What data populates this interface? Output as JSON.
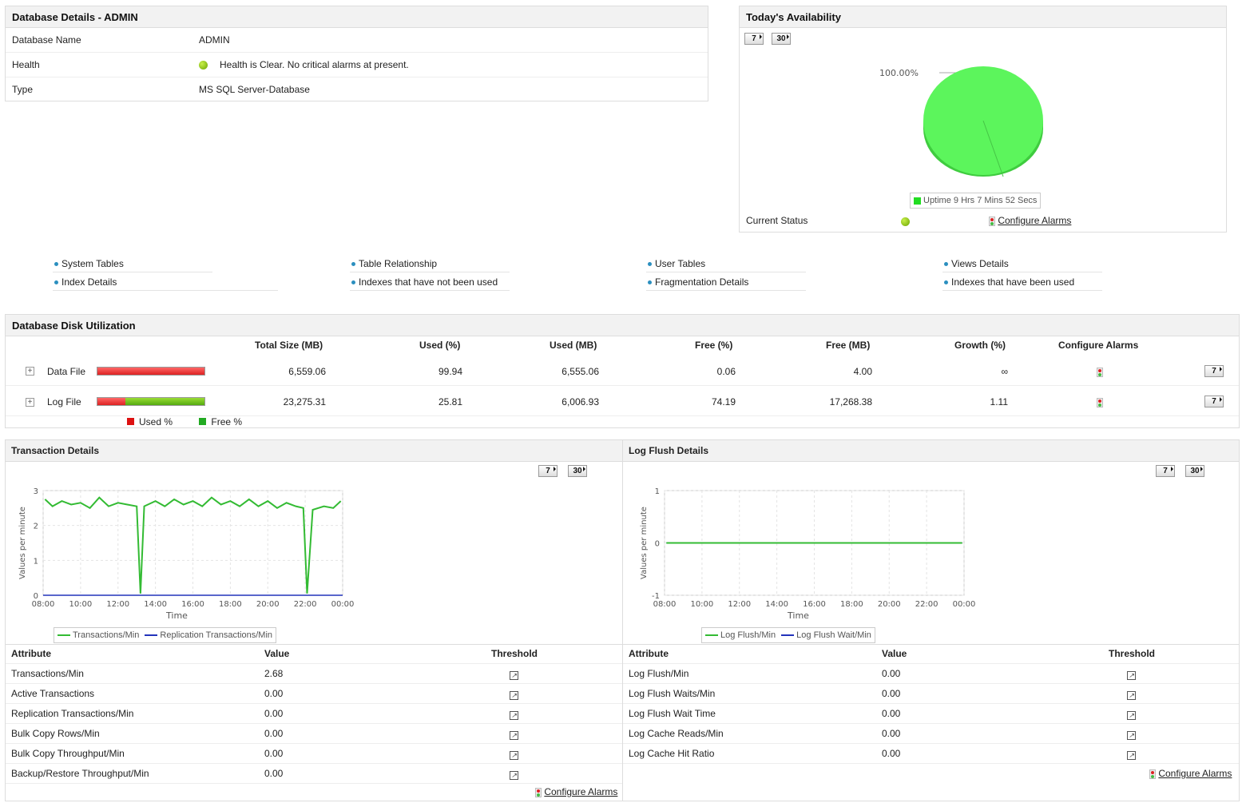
{
  "db_details": {
    "title": "Database Details  - ADMIN",
    "rows": [
      {
        "label": "Database Name",
        "value": "ADMIN"
      },
      {
        "label": "Health",
        "value": "Health is Clear. No critical alarms at present."
      },
      {
        "label": "Type",
        "value": "MS SQL Server-Database"
      }
    ]
  },
  "availability": {
    "title": "Today's Availability",
    "period_buttons": [
      "7",
      "30"
    ],
    "pie_label": "100.00%",
    "legend": "Uptime 9 Hrs 7 Mins 52 Secs",
    "current_status_label": "Current Status",
    "configure_alarms": "Configure Alarms",
    "colors": {
      "uptime": "#55ee55"
    }
  },
  "quick_links": [
    [
      "System Tables",
      "Index Details"
    ],
    [
      "Table Relationship",
      "Indexes that have not been used"
    ],
    [
      "User Tables",
      "Fragmentation Details"
    ],
    [
      "Views Details",
      "Indexes that have been used"
    ]
  ],
  "disk": {
    "title": "Database Disk Utilization",
    "headers": [
      "Total Size (MB)",
      "Used (%)",
      "Used (MB)",
      "Free (%)",
      "Free (MB)",
      "Growth (%)",
      "Configure Alarms"
    ],
    "rows": [
      {
        "name": "Data File",
        "total": "6,559.06",
        "used_pct": "99.94",
        "used_mb": "6,555.06",
        "free_pct": "0.06",
        "free_mb": "4.00",
        "growth": "∞",
        "used_frac": 0.9994,
        "btn": "7"
      },
      {
        "name": "Log File",
        "total": "23,275.31",
        "used_pct": "25.81",
        "used_mb": "6,006.93",
        "free_pct": "74.19",
        "free_mb": "17,268.38",
        "growth": "1.11",
        "used_frac": 0.2581,
        "btn": "7"
      }
    ],
    "legend": {
      "used": "Used %",
      "free": "Free %"
    },
    "colors": {
      "used": "#dd2222",
      "free": "#44bb22"
    }
  },
  "transaction": {
    "title": "Transaction Details",
    "period_buttons": [
      "7",
      "30"
    ],
    "attr_headers": [
      "Attribute",
      "Value",
      "Threshold"
    ],
    "attributes": [
      {
        "name": "Transactions/Min",
        "value": "2.68"
      },
      {
        "name": "Active Transactions",
        "value": "0.00"
      },
      {
        "name": "Replication Transactions/Min",
        "value": "0.00"
      },
      {
        "name": "Bulk Copy Rows/Min",
        "value": "0.00"
      },
      {
        "name": "Bulk Copy Throughput/Min",
        "value": "0.00"
      },
      {
        "name": "Backup/Restore Throughput/Min",
        "value": "0.00"
      }
    ],
    "configure_alarms": "Configure Alarms"
  },
  "logflush": {
    "title": "Log Flush Details",
    "period_buttons": [
      "7",
      "30"
    ],
    "attr_headers": [
      "Attribute",
      "Value",
      "Threshold"
    ],
    "attributes": [
      {
        "name": "Log Flush/Min",
        "value": "0.00"
      },
      {
        "name": "Log Flush Waits/Min",
        "value": "0.00"
      },
      {
        "name": "Log Flush Wait Time",
        "value": "0.00"
      },
      {
        "name": "Log Cache Reads/Min",
        "value": "0.00"
      },
      {
        "name": "Log Cache Hit Ratio",
        "value": "0.00"
      }
    ],
    "configure_alarms": "Configure Alarms"
  },
  "chart_data": [
    {
      "type": "line",
      "xlabel": "Time",
      "ylabel": "Values per minute",
      "x_ticks": [
        "08:00",
        "10:00",
        "12:00",
        "14:00",
        "16:00",
        "18:00",
        "20:00",
        "22:00",
        "00:00"
      ],
      "x_range_hours": [
        8,
        24
      ],
      "ylim": [
        0,
        3
      ],
      "y_ticks": [
        "0",
        "1",
        "2",
        "3"
      ],
      "series": [
        {
          "name": "Transactions/Min",
          "color": "#33bb33",
          "values_description_hourly": [
            2.7,
            2.6,
            2.65,
            2.6,
            2.55,
            0,
            2.6,
            2.55,
            2.7,
            2.6,
            2.65,
            2.6,
            2.55,
            2.6,
            2.5,
            2.6,
            2.65
          ],
          "x": [
            8.1,
            8.5,
            9,
            9.5,
            10,
            10.5,
            11,
            11.5,
            12,
            12.5,
            13.0,
            13.2,
            13.4,
            14,
            14.5,
            15,
            15.5,
            16,
            16.5,
            17,
            17.5,
            18,
            18.5,
            19,
            19.5,
            20,
            20.5,
            21,
            21.5,
            21.9,
            22.1,
            22.4,
            23,
            23.5,
            23.9
          ],
          "y": [
            2.75,
            2.55,
            2.7,
            2.6,
            2.65,
            2.5,
            2.8,
            2.55,
            2.65,
            2.6,
            2.55,
            0.05,
            2.55,
            2.7,
            2.55,
            2.75,
            2.6,
            2.7,
            2.55,
            2.8,
            2.6,
            2.7,
            2.55,
            2.75,
            2.55,
            2.7,
            2.5,
            2.65,
            2.55,
            2.5,
            0.05,
            2.45,
            2.55,
            2.5,
            2.7
          ]
        },
        {
          "name": "Replication Transactions/Min",
          "color": "#2233bb",
          "x": [
            8,
            24
          ],
          "y": [
            0,
            0
          ]
        }
      ]
    },
    {
      "type": "line",
      "xlabel": "Time",
      "ylabel": "Values per minute",
      "x_ticks": [
        "08:00",
        "10:00",
        "12:00",
        "14:00",
        "16:00",
        "18:00",
        "20:00",
        "22:00",
        "00:00"
      ],
      "x_range_hours": [
        8,
        24
      ],
      "ylim": [
        -1,
        1
      ],
      "y_ticks": [
        "-1",
        "0",
        "1"
      ],
      "series": [
        {
          "name": "Log Flush/Min",
          "color": "#33bb33",
          "x": [
            8.1,
            23.9
          ],
          "y": [
            0,
            0
          ]
        },
        {
          "name": "Log Flush Wait/Min",
          "color": "#2233bb",
          "x": [
            8.1,
            23.9
          ],
          "y": [
            0,
            0
          ]
        }
      ]
    }
  ]
}
